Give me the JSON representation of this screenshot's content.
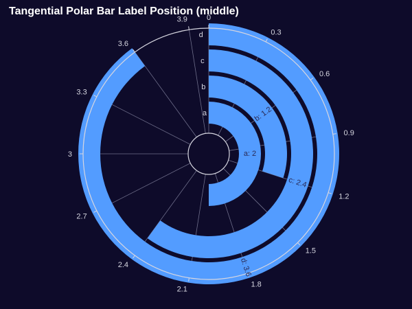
{
  "colors": {
    "background": "#0e0b2a",
    "bar": "#539cff",
    "grid": "#6e6e8a",
    "outline": "#d6d6e0"
  },
  "chart_data": {
    "type": "bar",
    "polar": true,
    "title": "Tangential Polar Bar Label Position (middle)",
    "categories": [
      "a",
      "b",
      "c",
      "d"
    ],
    "values": [
      2,
      1.2,
      2.4,
      3.6
    ],
    "bar_labels": [
      "a: 2",
      "b: 1.2",
      "c: 2.4",
      "d: 3.6"
    ],
    "angular_range": [
      0,
      4.0
    ],
    "angular_ticks": [
      0,
      0.3,
      0.6,
      0.9,
      1.2,
      1.5,
      1.8,
      2.1,
      2.4,
      2.7,
      3,
      3.3,
      3.6,
      3.9
    ],
    "angular_tick_labels": [
      "0",
      "0.3",
      "0.6",
      "0.9",
      "1.2",
      "1.5",
      "1.8",
      "2.1",
      "2.4",
      "2.7",
      "3",
      "3.3",
      "3.6",
      "3.9"
    ],
    "direction": "clockwise",
    "rotation": "top",
    "label_position": "middle",
    "grid": true
  }
}
